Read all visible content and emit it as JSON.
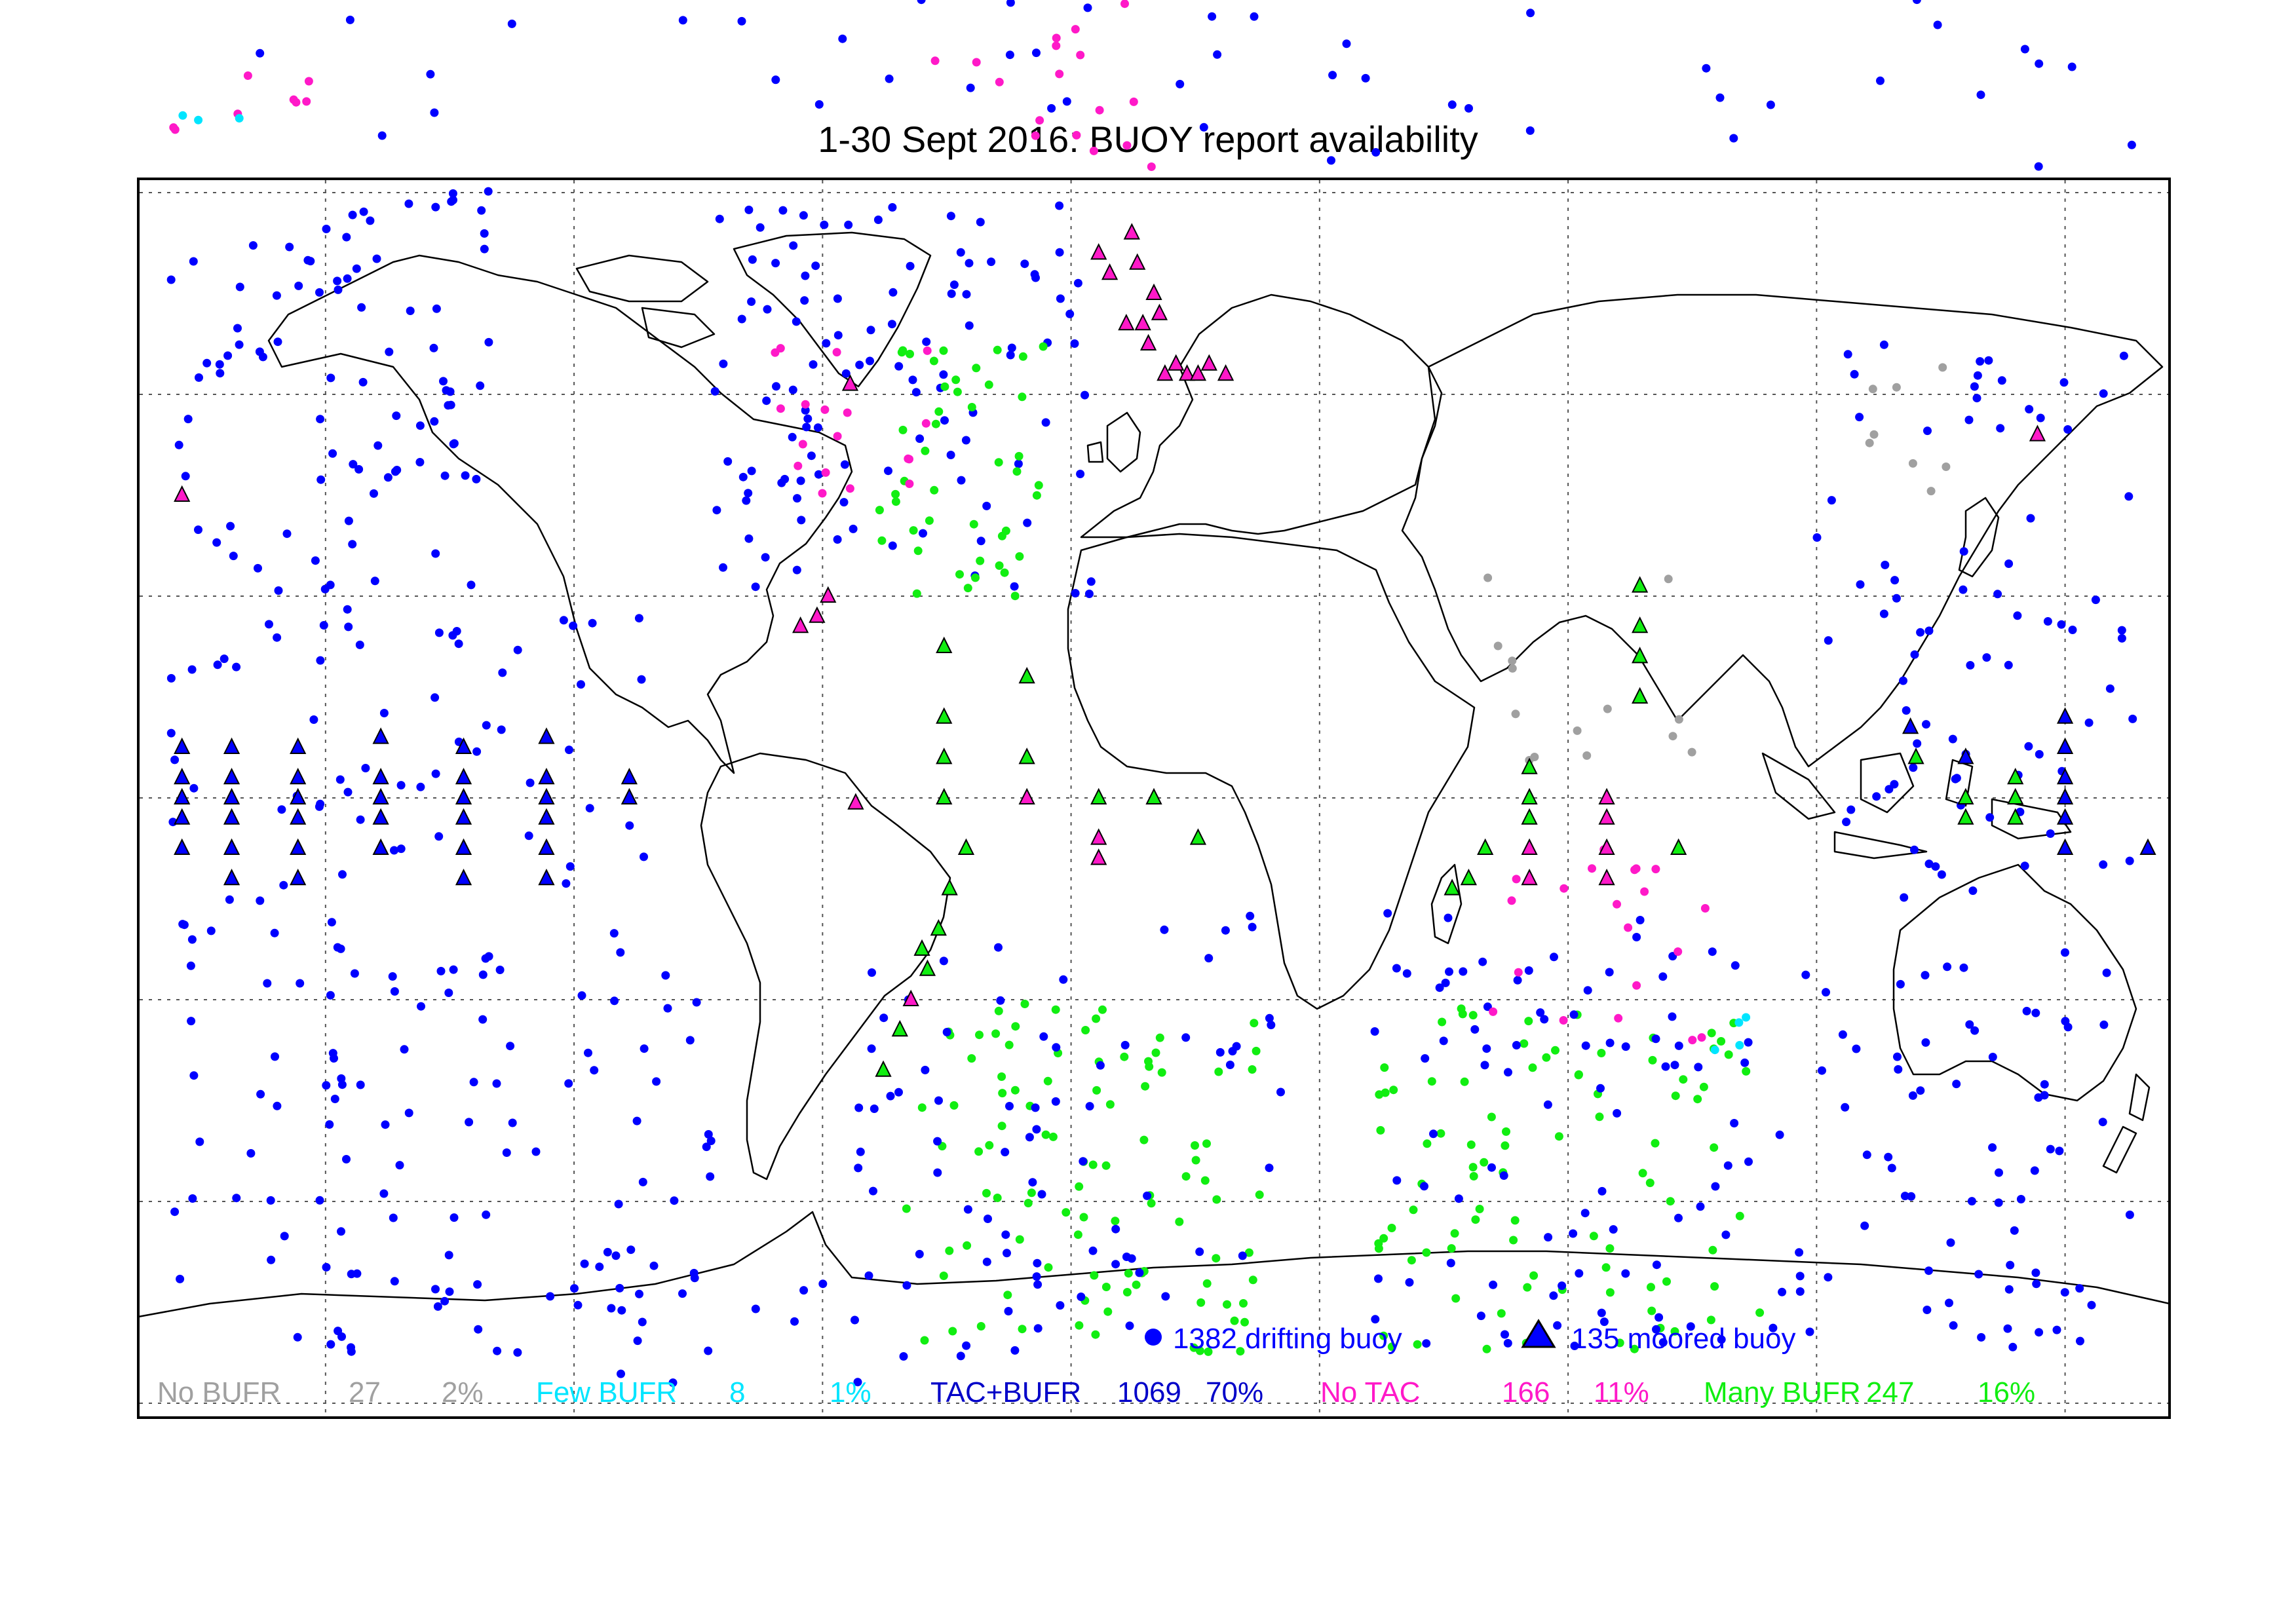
{
  "title": "1-30 Sept 2016: BUOY report availability",
  "colors": {
    "no_bufr": "#a0a0a0",
    "few_bufr": "#00e5ff",
    "tac_bufr": "#0000ff",
    "no_tac": "#ff19c8",
    "many_bufr": "#11ee11",
    "coast": "#000000",
    "grid": "#555555"
  },
  "legend": {
    "drifting": "1382 drifting buoy",
    "moored": "135 moored buoy"
  },
  "stats": [
    {
      "key": "no_bufr",
      "label": "No BUFR",
      "count": "27",
      "percent": "2%"
    },
    {
      "key": "few_bufr",
      "label": "Few BUFR",
      "count": "8",
      "percent": "1%"
    },
    {
      "key": "tac_bufr",
      "label": "TAC+BUFR",
      "count": "1069",
      "percent": "70%"
    },
    {
      "key": "no_tac",
      "label": "No TAC",
      "count": "166",
      "percent": "11%"
    },
    {
      "key": "many_bufr",
      "label": "Many BUFR",
      "count": "247",
      "percent": "16%"
    }
  ],
  "map_data": {
    "projection": "plate-carree",
    "lon_range": [
      -180,
      180
    ],
    "lat_range": [
      -90,
      90
    ],
    "grid_lon": [
      -150,
      -105,
      -60,
      -15,
      30,
      75,
      120,
      165
    ],
    "grid_lat": [
      -60,
      -40,
      -20,
      0,
      20,
      40,
      60
    ],
    "moored": [
      {
        "lon": -176,
        "lat": 5,
        "cat": "tac_bufr"
      },
      {
        "lon": -176,
        "lat": 2,
        "cat": "tac_bufr"
      },
      {
        "lon": -176,
        "lat": 0,
        "cat": "tac_bufr"
      },
      {
        "lon": -176,
        "lat": -2,
        "cat": "tac_bufr"
      },
      {
        "lon": -176,
        "lat": -5,
        "cat": "tac_bufr"
      },
      {
        "lon": -167,
        "lat": 5,
        "cat": "tac_bufr"
      },
      {
        "lon": -167,
        "lat": 2,
        "cat": "tac_bufr"
      },
      {
        "lon": -167,
        "lat": 0,
        "cat": "tac_bufr"
      },
      {
        "lon": -167,
        "lat": -2,
        "cat": "tac_bufr"
      },
      {
        "lon": -167,
        "lat": -5,
        "cat": "tac_bufr"
      },
      {
        "lon": -167,
        "lat": -8,
        "cat": "tac_bufr"
      },
      {
        "lon": -155,
        "lat": 5,
        "cat": "tac_bufr"
      },
      {
        "lon": -155,
        "lat": 2,
        "cat": "tac_bufr"
      },
      {
        "lon": -155,
        "lat": 0,
        "cat": "tac_bufr"
      },
      {
        "lon": -155,
        "lat": -2,
        "cat": "tac_bufr"
      },
      {
        "lon": -155,
        "lat": -5,
        "cat": "tac_bufr"
      },
      {
        "lon": -155,
        "lat": -8,
        "cat": "tac_bufr"
      },
      {
        "lon": -140,
        "lat": 6,
        "cat": "tac_bufr"
      },
      {
        "lon": -140,
        "lat": 2,
        "cat": "tac_bufr"
      },
      {
        "lon": -140,
        "lat": 0,
        "cat": "tac_bufr"
      },
      {
        "lon": -140,
        "lat": -2,
        "cat": "tac_bufr"
      },
      {
        "lon": -140,
        "lat": -5,
        "cat": "tac_bufr"
      },
      {
        "lon": -125,
        "lat": 5,
        "cat": "tac_bufr"
      },
      {
        "lon": -125,
        "lat": 2,
        "cat": "tac_bufr"
      },
      {
        "lon": -125,
        "lat": 0,
        "cat": "tac_bufr"
      },
      {
        "lon": -125,
        "lat": -2,
        "cat": "tac_bufr"
      },
      {
        "lon": -125,
        "lat": -5,
        "cat": "tac_bufr"
      },
      {
        "lon": -125,
        "lat": -8,
        "cat": "tac_bufr"
      },
      {
        "lon": -110,
        "lat": 6,
        "cat": "tac_bufr"
      },
      {
        "lon": -110,
        "lat": 2,
        "cat": "tac_bufr"
      },
      {
        "lon": -110,
        "lat": 0,
        "cat": "tac_bufr"
      },
      {
        "lon": -110,
        "lat": -2,
        "cat": "tac_bufr"
      },
      {
        "lon": -110,
        "lat": -5,
        "cat": "tac_bufr"
      },
      {
        "lon": -110,
        "lat": -8,
        "cat": "tac_bufr"
      },
      {
        "lon": -95,
        "lat": 2,
        "cat": "tac_bufr"
      },
      {
        "lon": -95,
        "lat": 0,
        "cat": "tac_bufr"
      },
      {
        "lon": -38,
        "lat": 15,
        "cat": "many_bufr"
      },
      {
        "lon": -38,
        "lat": 8,
        "cat": "many_bufr"
      },
      {
        "lon": -38,
        "lat": 4,
        "cat": "many_bufr"
      },
      {
        "lon": -38,
        "lat": 0,
        "cat": "many_bufr"
      },
      {
        "lon": -23,
        "lat": 12,
        "cat": "many_bufr"
      },
      {
        "lon": -23,
        "lat": 4,
        "cat": "many_bufr"
      },
      {
        "lon": -23,
        "lat": 0,
        "cat": "no_tac"
      },
      {
        "lon": -10,
        "lat": 0,
        "cat": "many_bufr"
      },
      {
        "lon": -10,
        "lat": -4,
        "cat": "no_tac"
      },
      {
        "lon": -10,
        "lat": -6,
        "cat": "no_tac"
      },
      {
        "lon": 0,
        "lat": 0,
        "cat": "many_bufr"
      },
      {
        "lon": 8,
        "lat": -4,
        "cat": "many_bufr"
      },
      {
        "lon": -34,
        "lat": -5,
        "cat": "many_bufr"
      },
      {
        "lon": -37,
        "lat": -9,
        "cat": "many_bufr"
      },
      {
        "lon": -39,
        "lat": -13,
        "cat": "many_bufr"
      },
      {
        "lon": -42,
        "lat": -15,
        "cat": "many_bufr"
      },
      {
        "lon": -44,
        "lat": -20,
        "cat": "no_tac"
      },
      {
        "lon": -46,
        "lat": -23,
        "cat": "many_bufr"
      },
      {
        "lon": -49,
        "lat": -27,
        "cat": "many_bufr"
      },
      {
        "lon": -41,
        "lat": -17,
        "cat": "many_bufr"
      },
      {
        "lon": -54,
        "lat": -0.5,
        "cat": "no_tac"
      },
      {
        "lon": -64,
        "lat": 17,
        "cat": "no_tac"
      },
      {
        "lon": -61,
        "lat": 18,
        "cat": "no_tac"
      },
      {
        "lon": -59,
        "lat": 20,
        "cat": "no_tac"
      },
      {
        "lon": -55,
        "lat": 41,
        "cat": "no_tac"
      },
      {
        "lon": -10,
        "lat": 54,
        "cat": "no_tac"
      },
      {
        "lon": -8,
        "lat": 52,
        "cat": "no_tac"
      },
      {
        "lon": -4,
        "lat": 56,
        "cat": "no_tac"
      },
      {
        "lon": -3,
        "lat": 53,
        "cat": "no_tac"
      },
      {
        "lon": 0,
        "lat": 50,
        "cat": "no_tac"
      },
      {
        "lon": 1,
        "lat": 48,
        "cat": "no_tac"
      },
      {
        "lon": -1,
        "lat": 45,
        "cat": "no_tac"
      },
      {
        "lon": 2,
        "lat": 42,
        "cat": "no_tac"
      },
      {
        "lon": 4,
        "lat": 43,
        "cat": "no_tac"
      },
      {
        "lon": 6,
        "lat": 42,
        "cat": "no_tac"
      },
      {
        "lon": 8,
        "lat": 42,
        "cat": "no_tac"
      },
      {
        "lon": 10,
        "lat": 43,
        "cat": "no_tac"
      },
      {
        "lon": 13,
        "lat": 42,
        "cat": "no_tac"
      },
      {
        "lon": -5,
        "lat": 47,
        "cat": "no_tac"
      },
      {
        "lon": -2,
        "lat": 47,
        "cat": "no_tac"
      },
      {
        "lon": 88,
        "lat": 21,
        "cat": "many_bufr"
      },
      {
        "lon": 88,
        "lat": 17,
        "cat": "many_bufr"
      },
      {
        "lon": 88,
        "lat": 14,
        "cat": "many_bufr"
      },
      {
        "lon": 88,
        "lat": 10,
        "cat": "many_bufr"
      },
      {
        "lon": 68,
        "lat": 3,
        "cat": "many_bufr"
      },
      {
        "lon": 68,
        "lat": 0,
        "cat": "many_bufr"
      },
      {
        "lon": 68,
        "lat": -2,
        "cat": "many_bufr"
      },
      {
        "lon": 68,
        "lat": -5,
        "cat": "no_tac"
      },
      {
        "lon": 68,
        "lat": -8,
        "cat": "no_tac"
      },
      {
        "lon": 82,
        "lat": 0,
        "cat": "no_tac"
      },
      {
        "lon": 82,
        "lat": -2,
        "cat": "no_tac"
      },
      {
        "lon": 82,
        "lat": -5,
        "cat": "no_tac"
      },
      {
        "lon": 82,
        "lat": -8,
        "cat": "no_tac"
      },
      {
        "lon": 60,
        "lat": -5,
        "cat": "many_bufr"
      },
      {
        "lon": 57,
        "lat": -8,
        "cat": "many_bufr"
      },
      {
        "lon": 54,
        "lat": -9,
        "cat": "many_bufr"
      },
      {
        "lon": 95,
        "lat": -5,
        "cat": "many_bufr"
      },
      {
        "lon": 137,
        "lat": 7,
        "cat": "tac_bufr"
      },
      {
        "lon": 138,
        "lat": 4,
        "cat": "many_bufr"
      },
      {
        "lon": 147,
        "lat": 4,
        "cat": "tac_bufr"
      },
      {
        "lon": 147,
        "lat": 0,
        "cat": "many_bufr"
      },
      {
        "lon": 147,
        "lat": -2,
        "cat": "many_bufr"
      },
      {
        "lon": 156,
        "lat": 2,
        "cat": "many_bufr"
      },
      {
        "lon": 156,
        "lat": 0,
        "cat": "many_bufr"
      },
      {
        "lon": 156,
        "lat": -2,
        "cat": "many_bufr"
      },
      {
        "lon": 165,
        "lat": 8,
        "cat": "tac_bufr"
      },
      {
        "lon": 165,
        "lat": 5,
        "cat": "tac_bufr"
      },
      {
        "lon": 165,
        "lat": 2,
        "cat": "tac_bufr"
      },
      {
        "lon": 165,
        "lat": 0,
        "cat": "tac_bufr"
      },
      {
        "lon": 165,
        "lat": -2,
        "cat": "tac_bufr"
      },
      {
        "lon": 165,
        "lat": -5,
        "cat": "tac_bufr"
      },
      {
        "lon": 180,
        "lat": -5,
        "cat": "tac_bufr"
      },
      {
        "lon": -176,
        "lat": 30,
        "cat": "no_tac"
      },
      {
        "lon": 160,
        "lat": 36,
        "cat": "no_tac"
      }
    ]
  }
}
